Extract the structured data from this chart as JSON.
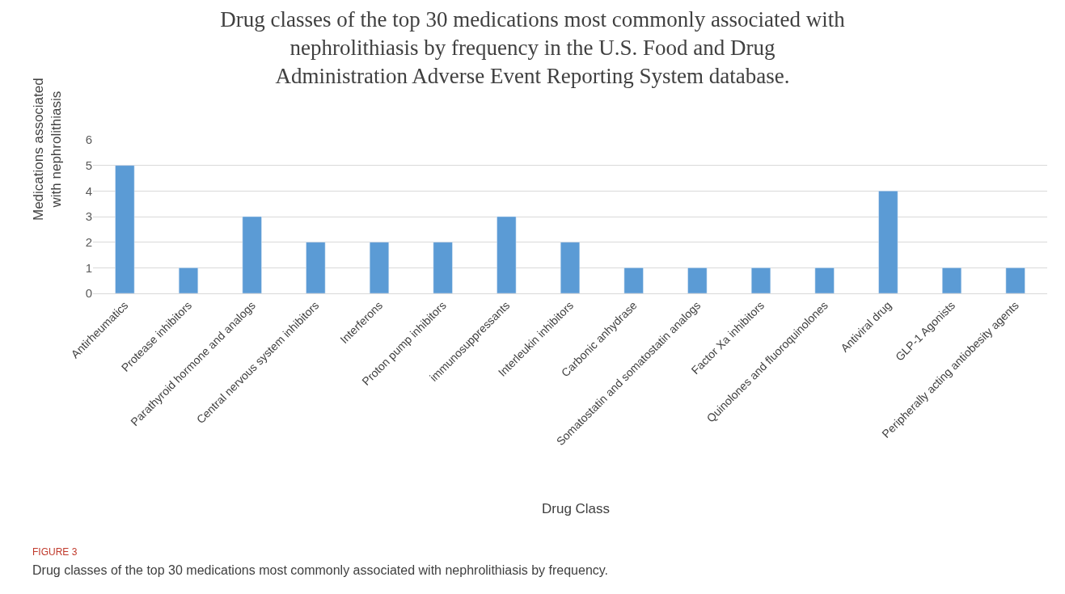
{
  "chart_data": {
    "type": "bar",
    "title": "Drug classes of the top 30 medications most commonly associated with nephrolithiasis by frequency in the U.S. Food and Drug Administration Adverse Event Reporting System database.",
    "xlabel": "Drug Class",
    "ylabel": "Medications associated with nephrolithiasis",
    "categories": [
      "Antirheumatics",
      "Protease inhibitors",
      "Parathyroid hormone and analogs",
      "Central nervous system inhibitors",
      "Interferons",
      "Proton pump inhibitors",
      "immunosuppressants",
      "Interleukin inhibitors",
      "Carbonic anhydrase",
      "Somatostatin and somatostatin analogs",
      "Factor Xa inhibitors",
      "Quinolones and fluoroquinolones",
      "Antiviral drug",
      "GLP-1 Agonists",
      "Peripherally acting antiobesity agents"
    ],
    "values": [
      5,
      1,
      3,
      2,
      2,
      2,
      3,
      2,
      1,
      1,
      1,
      1,
      4,
      1,
      1
    ],
    "color": "#5b9bd5",
    "ylim": [
      0,
      6
    ],
    "yticks": [
      0,
      1,
      2,
      3,
      4,
      5,
      6
    ],
    "grid": "y",
    "annotations": [
      "FIGURE 3",
      "Drug classes of the top 30 medications most commonly associated with nephrolithiasis by frequency."
    ]
  }
}
